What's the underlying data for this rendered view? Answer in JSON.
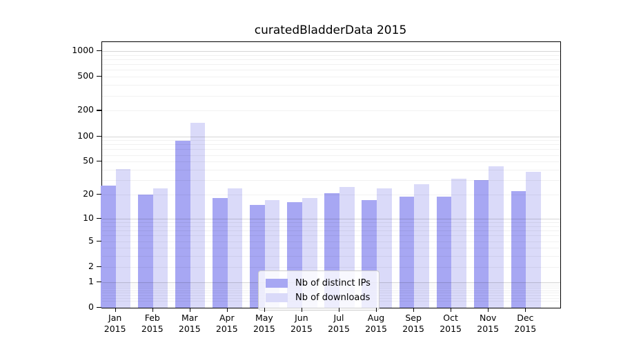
{
  "title": "curatedBladderData 2015",
  "chart_data": {
    "type": "bar",
    "title": "curatedBladderData 2015",
    "categories": [
      "Jan",
      "Feb",
      "Mar",
      "Apr",
      "May",
      "Jun",
      "Jul",
      "Aug",
      "Sep",
      "Oct",
      "Nov",
      "Dec"
    ],
    "category_year": "2015",
    "series": [
      {
        "name": "Nb of distinct IPs",
        "color": "#a7a7f3",
        "values": [
          26,
          20,
          88,
          18,
          15,
          16,
          21,
          17,
          19,
          19,
          30,
          22
        ]
      },
      {
        "name": "Nb of downloads",
        "color": "#dadaf9",
        "values": [
          41,
          24,
          145,
          24,
          17,
          18,
          25,
          24,
          27,
          31,
          44,
          38
        ]
      }
    ],
    "xlabel": "",
    "ylabel": "",
    "y_ticks": [
      0,
      1,
      2,
      5,
      10,
      20,
      50,
      100,
      200,
      500,
      1000
    ],
    "y_scale": "log10(value+1)",
    "ylim": [
      0,
      1270
    ],
    "grid": true,
    "major_gridlines_at": [
      1,
      10,
      100,
      1000
    ],
    "minor_gridlines": "2-9 within each decade",
    "legend_position": "bottom-center",
    "legend_frame_alpha": 0.8
  }
}
